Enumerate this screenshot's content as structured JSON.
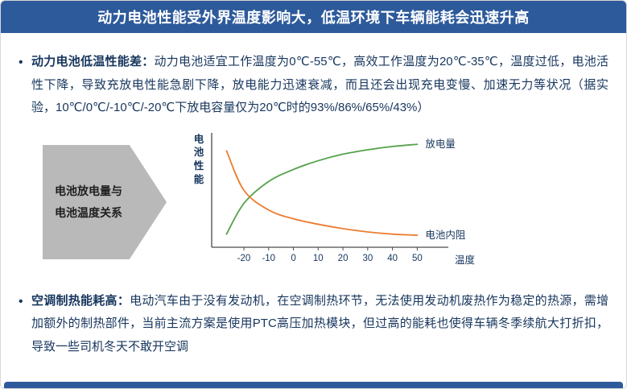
{
  "banner": {
    "title": "动力电池性能受外界温度影响大，低温环境下车辆能耗会迅速升高",
    "bg_color": "#2d5a9b",
    "text_color": "#ffffff"
  },
  "bullets": [
    {
      "label": "动力电池低温性能差：",
      "text": "动力电池适宜工作温度为0℃-55℃，高效工作温度为20℃-35℃，温度过低，电池活性下降，导致充放电性能急剧下降，放电能力迅速衰减，而且还会出现充电变慢、加速无力等状况（据实验，10℃/0℃/-10℃/-20℃下放电容量仅为20℃时的93%/86%/65%/43%）"
    },
    {
      "label": "空调制热能耗高：",
      "text": "电动汽车由于没有发动机，在空调制热环节，无法使用发动机废热作为稳定的热源，需增加额外的制热部件，当前主流方案是使用PTC高压加热模块，但过高的能耗也使得车辆冬季续航大打折扣，导致一些司机冬天不敢开空调"
    }
  ],
  "diagram": {
    "arrow_label_line1": "电池放电量与",
    "arrow_label_line2": "电池温度关系",
    "arrow_color": "#b9b9b9"
  },
  "chart_data": {
    "type": "line",
    "title": "",
    "xlabel": "温度",
    "ylabel": "电池性能",
    "x_ticks": [
      -20,
      -10,
      0,
      10,
      20,
      30,
      40,
      50
    ],
    "x": [
      -27,
      -20,
      -10,
      0,
      10,
      20,
      30,
      40,
      50
    ],
    "series": [
      {
        "name": "放电量",
        "color": "#54a24b",
        "values": [
          12,
          40,
          60,
          71,
          79,
          85,
          89,
          92,
          94
        ]
      },
      {
        "name": "电池内阻",
        "color": "#ed7d31",
        "values": [
          88,
          52,
          34,
          26,
          21,
          17,
          14,
          12,
          11
        ]
      }
    ],
    "ylim": [
      0,
      100
    ],
    "grid": false,
    "legend": "labels-at-line-end",
    "text_color": "#17365d"
  },
  "footer": {
    "bar_color": "#2d5a9b"
  }
}
